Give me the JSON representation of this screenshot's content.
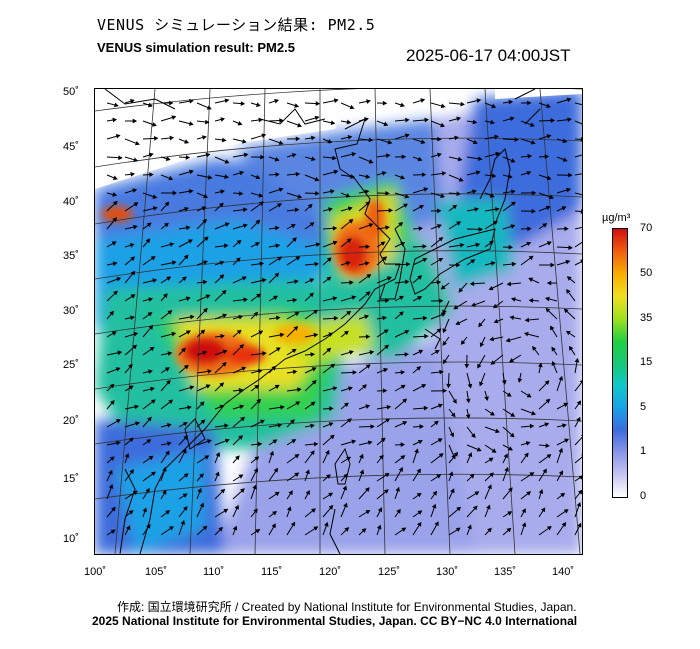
{
  "header": {
    "title_jp": "VENUS シミュレーション結果: PM2.5",
    "title_en": "VENUS simulation result: PM2.5",
    "timestamp": "2025-06-17 04:00JST"
  },
  "map": {
    "variable": "PM2.5",
    "lat_ticks": [
      "50˚",
      "45˚",
      "40˚",
      "35˚",
      "30˚",
      "25˚",
      "20˚",
      "15˚",
      "10˚"
    ],
    "lon_ticks": [
      "100˚",
      "105˚",
      "110˚",
      "115˚",
      "120˚",
      "125˚",
      "130˚",
      "135˚",
      "140˚"
    ],
    "colors": {
      "ocean_low": "#8c96e6",
      "low": "#3c6cdc",
      "mid": "#18c878",
      "high": "#f0e020",
      "very_high": "#d01010"
    }
  },
  "colorbar": {
    "unit_html": "µg/m³",
    "levels": [
      "70",
      "50",
      "35",
      "15",
      "5",
      "1",
      "0"
    ]
  },
  "footer": {
    "credit": "作成: 国立環境研究所 / Created by National Institute for Environmental Studies, Japan.",
    "copyright": "2025 National Institute for Environmental Studies, Japan. CC BY−NC 4.0 International"
  }
}
